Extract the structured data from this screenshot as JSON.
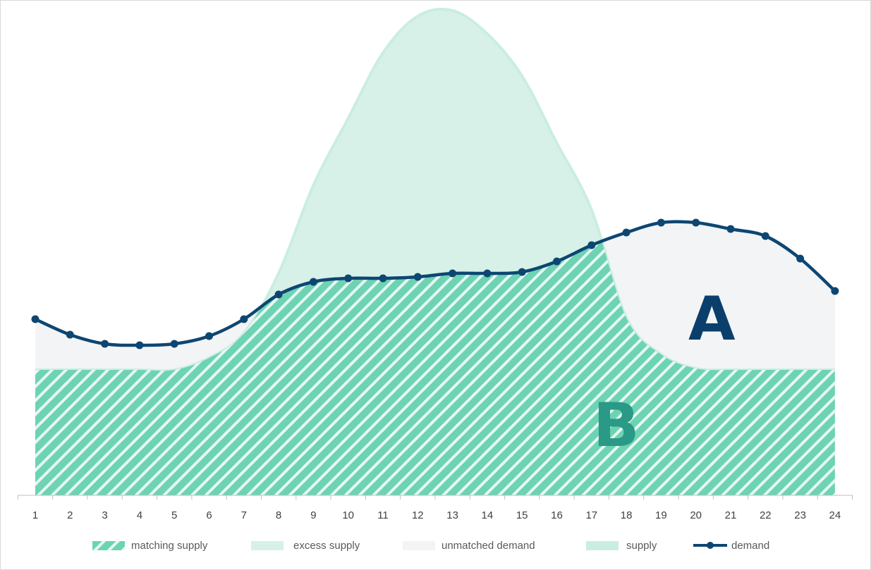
{
  "chart_data": {
    "type": "area",
    "x": [
      1,
      2,
      3,
      4,
      5,
      6,
      7,
      8,
      9,
      10,
      11,
      12,
      13,
      14,
      15,
      16,
      17,
      18,
      19,
      20,
      21,
      22,
      23,
      24
    ],
    "x_tick_labels": [
      "1",
      "2",
      "3",
      "4",
      "5",
      "6",
      "7",
      "8",
      "9",
      "10",
      "11",
      "12",
      "13",
      "14",
      "15",
      "16",
      "17",
      "18",
      "19",
      "20",
      "21",
      "22",
      "23",
      "24"
    ],
    "ylim": [
      0,
      700
    ],
    "series": [
      {
        "name": "supply",
        "kind": "area",
        "values": [
          178,
          178,
          178,
          178,
          178,
          195,
          230,
          315,
          440,
          535,
          628,
          680,
          688,
          655,
          595,
          500,
          405,
          252,
          200,
          180,
          178,
          178,
          178,
          178
        ]
      },
      {
        "name": "demand",
        "kind": "line-markers",
        "values": [
          250,
          228,
          215,
          213,
          215,
          226,
          250,
          285,
          303,
          308,
          308,
          310,
          315,
          315,
          317,
          332,
          355,
          373,
          387,
          387,
          378,
          368,
          336,
          290
        ]
      },
      {
        "name": "matching supply",
        "kind": "area-hatched",
        "rule": "min(supply, demand)"
      },
      {
        "name": "excess supply",
        "kind": "area",
        "rule": "supply above demand"
      },
      {
        "name": "unmatched demand",
        "kind": "area",
        "rule": "demand above supply"
      }
    ],
    "legend": [
      "matching supply",
      "excess supply",
      "unmatched demand",
      "supply",
      "demand"
    ],
    "legend_position": "bottom",
    "annotations": [
      {
        "text": "A",
        "color": "#0b3f6b"
      },
      {
        "text": "B",
        "color": "#2a9a86"
      }
    ],
    "colors": {
      "matching_supply": "#6dd3b3",
      "matching_hatch": "#e6f8f2",
      "excess_supply": "#d7f1e8",
      "unmatched_demand": "#f3f4f5",
      "supply_line": "#c9eedf",
      "demand": "#0d4672"
    },
    "grid": false
  }
}
